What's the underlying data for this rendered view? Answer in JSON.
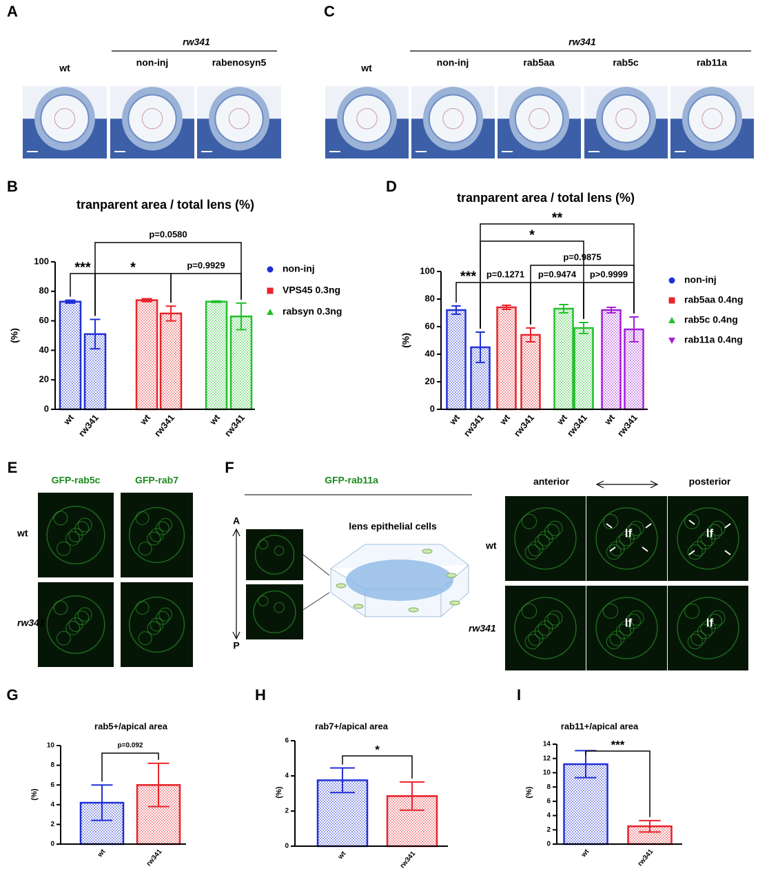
{
  "chart_data": [
    {
      "type": "bar",
      "panel": "B",
      "title": "tranparent area / total lens (%)",
      "y_label": "(%)",
      "categories": [
        "wt",
        "rw341"
      ],
      "series": [
        {
          "name": "non-inj",
          "color": "#1f2fd6",
          "values": [
            73,
            51
          ],
          "errors": [
            1,
            10
          ]
        },
        {
          "name": "VPS45 0.3ng",
          "color": "#e8232a",
          "values": [
            74,
            65
          ],
          "errors": [
            1,
            5
          ]
        },
        {
          "name": "rabsyn 0.3ng",
          "color": "#22c02a",
          "values": [
            73,
            63
          ],
          "errors": [
            0.5,
            9
          ]
        }
      ],
      "ylim": [
        0,
        100
      ],
      "yticks": [
        0,
        20,
        40,
        60,
        80,
        100
      ],
      "annotations": [
        {
          "text": "***",
          "from": 0,
          "to": 1
        },
        {
          "text": "*",
          "from": 1,
          "to": 3
        },
        {
          "text": "p=0.9929",
          "from": 3,
          "to": 5
        },
        {
          "text": "p=0.0580",
          "from": 1,
          "to": 5
        }
      ],
      "legend": "right"
    },
    {
      "type": "bar",
      "panel": "D",
      "title": "tranparent area / total lens (%)",
      "y_label": "(%)",
      "categories": [
        "wt",
        "rw341"
      ],
      "series": [
        {
          "name": "non-inj",
          "color": "#1f2fd6",
          "values": [
            72,
            45
          ],
          "errors": [
            3,
            11
          ]
        },
        {
          "name": "rab5aa 0.4ng",
          "color": "#e8232a",
          "values": [
            74,
            54
          ],
          "errors": [
            1.5,
            5
          ]
        },
        {
          "name": "rab5c 0.4ng",
          "color": "#22c02a",
          "values": [
            73,
            59
          ],
          "errors": [
            3,
            4
          ]
        },
        {
          "name": "rab11a 0.4ng",
          "color": "#a21fd6",
          "values": [
            72,
            58
          ],
          "errors": [
            2,
            9
          ]
        }
      ],
      "ylim": [
        0,
        100
      ],
      "yticks": [
        0,
        20,
        40,
        60,
        80,
        100
      ],
      "annotations": [
        {
          "text": "***",
          "from": 0,
          "to": 1
        },
        {
          "text": "p=0.1271",
          "from": 1,
          "to": 3
        },
        {
          "text": "p=0.9474",
          "from": 3,
          "to": 5
        },
        {
          "text": "p>0.9999",
          "from": 5,
          "to": 7
        },
        {
          "text": "p=0.9875",
          "from": 3,
          "to": 7
        },
        {
          "text": "*",
          "from": 1,
          "to": 5
        },
        {
          "text": "**",
          "from": 1,
          "to": 7
        }
      ],
      "legend": "right"
    },
    {
      "type": "bar",
      "panel": "G",
      "title": "rab5+/apical area",
      "y_label": "(%)",
      "categories": [
        "wt",
        "rw341"
      ],
      "values": [
        4.2,
        6.0
      ],
      "errors": [
        1.8,
        2.2
      ],
      "colors": [
        "#1f2fd6",
        "#e8232a"
      ],
      "ylim": [
        0,
        10
      ],
      "yticks": [
        0,
        2,
        4,
        6,
        8,
        10
      ],
      "annotations": [
        {
          "text": "p=0.092",
          "from": 0,
          "to": 1
        }
      ]
    },
    {
      "type": "bar",
      "panel": "H",
      "title": "rab7+/apical area",
      "y_label": "(%)",
      "categories": [
        "wt",
        "rw341"
      ],
      "values": [
        3.75,
        2.85
      ],
      "errors": [
        0.7,
        0.8
      ],
      "colors": [
        "#1f2fd6",
        "#e8232a"
      ],
      "ylim": [
        0,
        6
      ],
      "yticks": [
        0,
        2,
        4,
        6
      ],
      "annotations": [
        {
          "text": "*",
          "from": 0,
          "to": 1
        }
      ]
    },
    {
      "type": "bar",
      "panel": "I",
      "title": "rab11+/apical area",
      "y_label": "(%)",
      "categories": [
        "wt",
        "rw341"
      ],
      "values": [
        11.2,
        2.5
      ],
      "errors": [
        1.9,
        0.8
      ],
      "colors": [
        "#1f2fd6",
        "#e8232a"
      ],
      "ylim": [
        0,
        14
      ],
      "yticks": [
        0,
        2,
        4,
        6,
        8,
        10,
        12,
        14
      ],
      "annotations": [
        {
          "text": "***",
          "from": 0,
          "to": 1
        }
      ]
    }
  ],
  "panel_A": {
    "letter": "A",
    "group": "rw341",
    "images": [
      "wt",
      "non-inj",
      "rabenosyn5"
    ]
  },
  "panel_C": {
    "letter": "C",
    "group": "rw341",
    "images": [
      "wt",
      "non-inj",
      "rab5aa",
      "rab5c",
      "rab11a"
    ]
  },
  "panel_E": {
    "letter": "E",
    "columns": [
      "GFP-rab5c",
      "GFP-rab7"
    ],
    "rows": [
      "wt",
      "rw341"
    ]
  },
  "panel_F": {
    "letter": "F",
    "title": "GFP-rab11a",
    "diagram_label": "lens epithelial cells",
    "axis": [
      "A",
      "P"
    ],
    "direction": [
      "anterior",
      "posterior"
    ],
    "rows": [
      "wt",
      "rw341"
    ],
    "image_labels": [
      "lf",
      "lf",
      "lf",
      "lf"
    ]
  }
}
